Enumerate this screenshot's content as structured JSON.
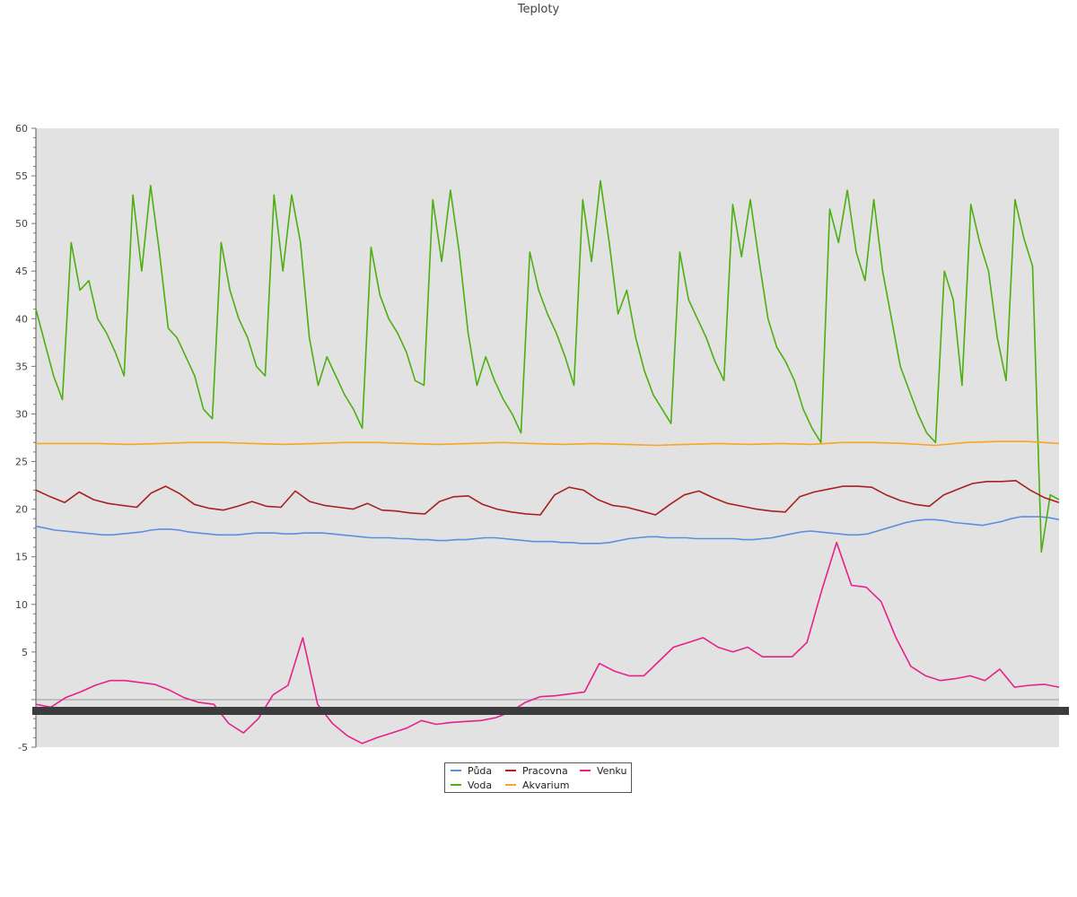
{
  "chart_data": {
    "type": "line",
    "title": "Teploty",
    "ylim": [
      -5,
      60
    ],
    "yticks": [
      "60",
      "55",
      "50",
      "45",
      "40",
      "35",
      "30",
      "25",
      "20",
      "15",
      "10",
      "5",
      "-5"
    ],
    "grid": false,
    "legend_position": "bottom-center",
    "x_range": [
      0,
      107
    ],
    "series": [
      {
        "name": "Půda",
        "color": "#5b8fe0",
        "values": [
          18.2,
          18.0,
          17.8,
          17.7,
          17.6,
          17.5,
          17.4,
          17.3,
          17.3,
          17.4,
          17.5,
          17.6,
          17.8,
          17.9,
          17.9,
          17.8,
          17.6,
          17.5,
          17.4,
          17.3,
          17.3,
          17.3,
          17.4,
          17.5,
          17.5,
          17.5,
          17.4,
          17.4,
          17.5,
          17.5,
          17.5,
          17.4,
          17.3,
          17.2,
          17.1,
          17.0,
          17.0,
          17.0,
          16.9,
          16.9,
          16.8,
          16.8,
          16.7,
          16.7,
          16.8,
          16.8,
          16.9,
          17.0,
          17.0,
          16.9,
          16.8,
          16.7,
          16.6,
          16.6,
          16.6,
          16.5,
          16.5,
          16.4,
          16.4,
          16.4,
          16.5,
          16.7,
          16.9,
          17.0,
          17.1,
          17.1,
          17.0,
          17.0,
          17.0,
          16.9,
          16.9,
          16.9,
          16.9,
          16.9,
          16.8,
          16.8,
          16.9,
          17.0,
          17.2,
          17.4,
          17.6,
          17.7,
          17.6,
          17.5,
          17.4,
          17.3,
          17.3,
          17.4,
          17.7,
          18.0,
          18.3,
          18.6,
          18.8,
          18.9,
          18.9,
          18.8,
          18.6,
          18.5,
          18.4,
          18.3,
          18.5,
          18.7,
          19.0,
          19.2,
          19.2,
          19.2,
          19.1,
          18.9
        ]
      },
      {
        "name": "Voda",
        "color": "#4caf10",
        "values": [
          41.0,
          37.5,
          34.0,
          31.5,
          48.0,
          43.0,
          44.0,
          40.0,
          38.5,
          36.5,
          34.0,
          53.0,
          45.0,
          54.0,
          47.0,
          39.0,
          38.0,
          36.0,
          34.0,
          30.5,
          29.5,
          48.0,
          43.0,
          40.0,
          38.0,
          35.0,
          34.0,
          53.0,
          45.0,
          53.0,
          48.0,
          38.0,
          33.0,
          36.0,
          34.0,
          32.0,
          30.5,
          28.5,
          47.5,
          42.5,
          40.0,
          38.5,
          36.5,
          33.5,
          33.0,
          52.5,
          46.0,
          53.5,
          47.0,
          38.5,
          33.0,
          36.0,
          33.5,
          31.5,
          30.0,
          28.0,
          47.0,
          43.0,
          40.5,
          38.5,
          36.0,
          33.0,
          52.5,
          46.0,
          54.5,
          48.0,
          40.5,
          43.0,
          38.0,
          34.5,
          32.0,
          30.5,
          29.0,
          47.0,
          42.0,
          40.0,
          38.0,
          35.5,
          33.5,
          52.0,
          46.5,
          52.5,
          46.0,
          40.0,
          37.0,
          35.5,
          33.5,
          30.5,
          28.5,
          27.0,
          51.5,
          48.0,
          53.5,
          47.0,
          44.0,
          52.5,
          45.0,
          40.0,
          35.0,
          32.5,
          30.0,
          28.0,
          27.0,
          45.0,
          42.0,
          33.0,
          52.0,
          48.0,
          45.0,
          38.0,
          33.5,
          52.5,
          48.5,
          45.5,
          15.5,
          21.5,
          21.0
        ]
      },
      {
        "name": "Pracovna",
        "color": "#a82020",
        "values": [
          22.0,
          21.3,
          20.7,
          21.8,
          21.0,
          20.6,
          20.4,
          20.2,
          21.7,
          22.4,
          21.6,
          20.5,
          20.1,
          19.9,
          20.3,
          20.8,
          20.3,
          20.2,
          21.9,
          20.8,
          20.4,
          20.2,
          20.0,
          20.6,
          19.9,
          19.8,
          19.6,
          19.5,
          20.8,
          21.3,
          21.4,
          20.5,
          20.0,
          19.7,
          19.5,
          19.4,
          21.5,
          22.3,
          22.0,
          21.0,
          20.4,
          20.2,
          19.8,
          19.4,
          20.5,
          21.5,
          21.9,
          21.2,
          20.6,
          20.3,
          20.0,
          19.8,
          19.7,
          21.3,
          21.8,
          22.1,
          22.4,
          22.4,
          22.3,
          21.5,
          20.9,
          20.5,
          20.3,
          21.5,
          22.1,
          22.7,
          22.9,
          22.9,
          23.0,
          22.0,
          21.2,
          20.7
        ]
      },
      {
        "name": "Akvarium",
        "color": "#f5a623",
        "values": [
          26.9,
          26.9,
          26.9,
          26.8,
          26.9,
          27.0,
          27.0,
          26.9,
          26.8,
          26.9,
          27.0,
          27.0,
          26.9,
          26.8,
          26.9,
          27.0,
          26.9,
          26.8,
          26.9,
          26.8,
          26.7,
          26.8,
          26.9,
          26.8,
          26.9,
          26.8,
          27.0,
          27.0,
          26.9,
          26.7,
          27.0,
          27.1,
          27.1,
          26.9
        ]
      },
      {
        "name": "Venku",
        "color": "#e8208c",
        "values": [
          -0.5,
          -0.8,
          0.2,
          0.8,
          1.5,
          2.0,
          2.0,
          1.8,
          1.6,
          1.0,
          0.2,
          -0.3,
          -0.5,
          -2.5,
          -3.5,
          -2.0,
          0.5,
          1.5,
          6.5,
          -0.5,
          -2.5,
          -3.8,
          -4.6,
          -4.0,
          -3.5,
          -3.0,
          -2.2,
          -2.6,
          -2.4,
          -2.3,
          -2.2,
          -1.9,
          -1.3,
          -0.3,
          0.3,
          0.4,
          0.6,
          0.8,
          3.8,
          3.0,
          2.5,
          2.5,
          4.0,
          5.5,
          6.0,
          6.5,
          5.5,
          5.0,
          5.5,
          4.5,
          4.5,
          4.5,
          6.0,
          11.5,
          16.5,
          12.0,
          11.8,
          10.3,
          6.5,
          3.5,
          2.5,
          2.0,
          2.2,
          2.5,
          2.0,
          3.2,
          1.3,
          1.5,
          1.6,
          1.3
        ]
      }
    ]
  }
}
